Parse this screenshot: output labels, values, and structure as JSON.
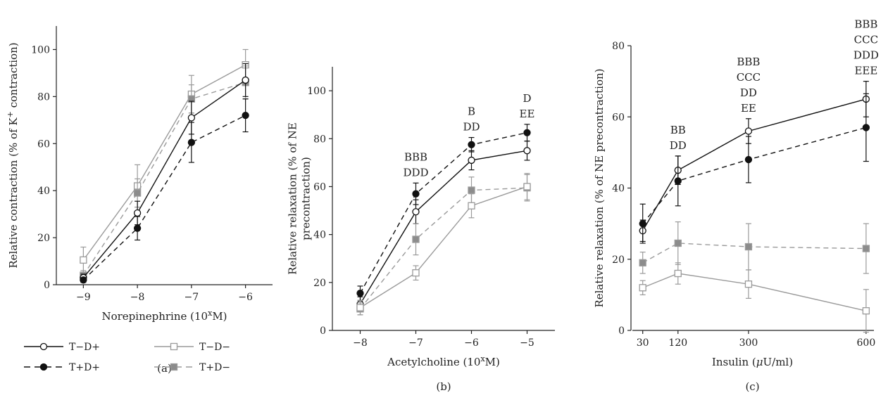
{
  "colors": {
    "black": "#111111",
    "gray": "#9a9a9a",
    "darkgray": "#8c8c8c"
  },
  "legend": [
    {
      "label": "T−D+",
      "style": "solid-open-circle"
    },
    {
      "label": "T−D−",
      "style": "gray-solid-open-square"
    },
    {
      "label": "T+D+",
      "style": "dashed-filled-circle"
    },
    {
      "label": "T+D−",
      "style": "gray-dashed-filled-square"
    }
  ],
  "chart_data": [
    {
      "panel_label": "(a)",
      "type": "line",
      "xlabel_main": "Norepinephrine (10",
      "xlabel_sup": "x",
      "xlabel_end": "M)",
      "ylabel_main": "Relative contraction (% of K",
      "ylabel_sup": "+",
      "ylabel_end": " contraction)",
      "xlim": [
        -9.5,
        -5.5
      ],
      "ylim": [
        0,
        110
      ],
      "x": [
        -9,
        -8,
        -7,
        -6
      ],
      "xticks": [
        -9,
        -8,
        -7,
        -6
      ],
      "xtick_labels": [
        "−9",
        "−8",
        "−7",
        "−6"
      ],
      "yticks": [
        0,
        20,
        40,
        60,
        80,
        100
      ],
      "ytick_labels": [
        "0",
        "20",
        "40",
        "60",
        "80",
        "100"
      ],
      "series": [
        {
          "name": "T−D−",
          "values": [
            10.5,
            42,
            81,
            93.5
          ],
          "errors": [
            5.5,
            9,
            8,
            6.5
          ]
        },
        {
          "name": "T+D−",
          "values": [
            4,
            39,
            79,
            86
          ],
          "errors": [
            2,
            6,
            6,
            7
          ]
        },
        {
          "name": "T−D+",
          "values": [
            3,
            30.5,
            71,
            87
          ],
          "errors": [
            1.5,
            5,
            7,
            7
          ]
        },
        {
          "name": "T+D+",
          "values": [
            2,
            24,
            60.5,
            72
          ],
          "errors": [
            1,
            5,
            8.5,
            7
          ]
        }
      ],
      "annotations": []
    },
    {
      "panel_label": "(b)",
      "type": "line",
      "xlabel_main": "Acetylcholine (10",
      "xlabel_sup": "x",
      "xlabel_end": "M)",
      "ylabel_lines": [
        "Relative relaxation (% of NE",
        "precontraction)"
      ],
      "xlim": [
        -8.5,
        -4.5
      ],
      "ylim": [
        0,
        110
      ],
      "x": [
        -8,
        -7,
        -6,
        -5
      ],
      "xticks": [
        -8,
        -7,
        -6,
        -5
      ],
      "xtick_labels": [
        "−8",
        "−7",
        "−6",
        "−5"
      ],
      "yticks": [
        0,
        20,
        40,
        60,
        80,
        100
      ],
      "ytick_labels": [
        "0",
        "20",
        "40",
        "60",
        "80",
        "100"
      ],
      "series": [
        {
          "name": "T+D+",
          "values": [
            15.5,
            57,
            77.5,
            82.5
          ],
          "errors": [
            3,
            4.5,
            3,
            3.5
          ]
        },
        {
          "name": "T−D+",
          "values": [
            11,
            49.5,
            71,
            75
          ],
          "errors": [
            3,
            5,
            4,
            4
          ]
        },
        {
          "name": "T+D−",
          "values": [
            9,
            38,
            58.5,
            59.5
          ],
          "errors": [
            2.5,
            6.5,
            5.5,
            5.5
          ]
        },
        {
          "name": "T−D−",
          "values": [
            9.5,
            24,
            52,
            60
          ],
          "errors": [
            3,
            3,
            5,
            5.5
          ]
        }
      ],
      "annotations": [
        {
          "x": -7,
          "lines": [
            "BBB",
            "DDD"
          ]
        },
        {
          "x": -6,
          "lines": [
            "B",
            "DD"
          ]
        },
        {
          "x": -5,
          "lines": [
            "D",
            "EE"
          ]
        }
      ]
    },
    {
      "panel_label": "(c)",
      "type": "line",
      "xlabel_main": "Insulin (",
      "xlabel_mu": "μ",
      "xlabel_end": "U/ml)",
      "ylabel_lines": [
        "Relative relaxation (% of NE precontraction)"
      ],
      "xlim": [
        0,
        620
      ],
      "ylim": [
        0,
        80
      ],
      "x": [
        30,
        120,
        300,
        600
      ],
      "xticks": [
        30,
        120,
        300,
        600
      ],
      "xtick_labels": [
        "30",
        "120",
        "300",
        "600"
      ],
      "yticks": [
        0,
        20,
        40,
        60,
        80
      ],
      "ytick_labels": [
        "0",
        "20",
        "40",
        "60",
        "80"
      ],
      "series": [
        {
          "name": "T−D+",
          "values": [
            28,
            45,
            56,
            65
          ],
          "errors": [
            3,
            4,
            3.5,
            5
          ]
        },
        {
          "name": "T+D+",
          "values": [
            30,
            42,
            48,
            57
          ],
          "errors": [
            5.5,
            7,
            6.5,
            9.5
          ]
        },
        {
          "name": "T+D−",
          "values": [
            19,
            24.5,
            23.5,
            23
          ],
          "errors": [
            3,
            6,
            6.5,
            7
          ]
        },
        {
          "name": "T−D−",
          "values": [
            12,
            16,
            13,
            5.5
          ],
          "errors": [
            2,
            3,
            4,
            6
          ]
        }
      ],
      "annotations": [
        {
          "x": 120,
          "lines": [
            "BB",
            "DD"
          ]
        },
        {
          "x": 300,
          "lines": [
            "BBB",
            "CCC",
            "DD",
            "EE"
          ]
        },
        {
          "x": 600,
          "lines": [
            "BBB",
            "CCC",
            "DDD",
            "EEE"
          ]
        }
      ]
    }
  ]
}
